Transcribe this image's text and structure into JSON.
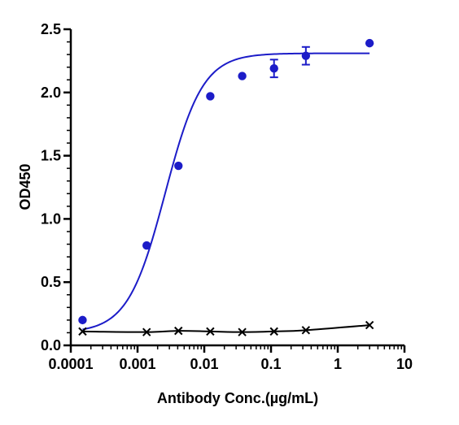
{
  "chart_data": {
    "type": "scatter",
    "title": "",
    "xlabel": "Antibody Conc.(µg/mL)",
    "ylabel": "OD450",
    "x_scale": "log",
    "xlim": [
      0.0001,
      10
    ],
    "ylim": [
      0,
      2.5
    ],
    "x_ticks": [
      0.0001,
      0.001,
      0.01,
      0.1,
      1,
      10
    ],
    "x_tick_labels": [
      "0.0001",
      "0.001",
      "0.01",
      "0.1",
      "1",
      "10"
    ],
    "y_ticks": [
      0,
      0.5,
      1,
      1.5,
      2,
      2.5
    ],
    "y_tick_labels": [
      "0.0",
      "0.5",
      "1.0",
      "1.5",
      "2.0",
      "2.5"
    ],
    "grid": false,
    "legend": "none",
    "series": [
      {
        "marker": "circle",
        "color": "#1c1cc8",
        "x": [
          0.00015,
          0.00137,
          0.0041,
          0.0123,
          0.037,
          0.111,
          0.333,
          3.0
        ],
        "y": [
          0.2,
          0.79,
          1.42,
          1.97,
          2.13,
          2.19,
          2.29,
          2.39
        ],
        "error": [
          0,
          0,
          0,
          0,
          0,
          0.07,
          0.07,
          0
        ],
        "fit": {
          "model": "4PL",
          "bottom": 0.1,
          "top": 2.31,
          "ec50": 0.0026,
          "hill": 1.55
        }
      },
      {
        "marker": "x",
        "color": "#000000",
        "x": [
          0.00015,
          0.00137,
          0.0041,
          0.0123,
          0.037,
          0.111,
          0.333,
          3.0
        ],
        "y": [
          0.11,
          0.105,
          0.115,
          0.11,
          0.105,
          0.11,
          0.12,
          0.16
        ],
        "fit": {
          "model": "smooth",
          "color": "#000000"
        }
      }
    ]
  }
}
